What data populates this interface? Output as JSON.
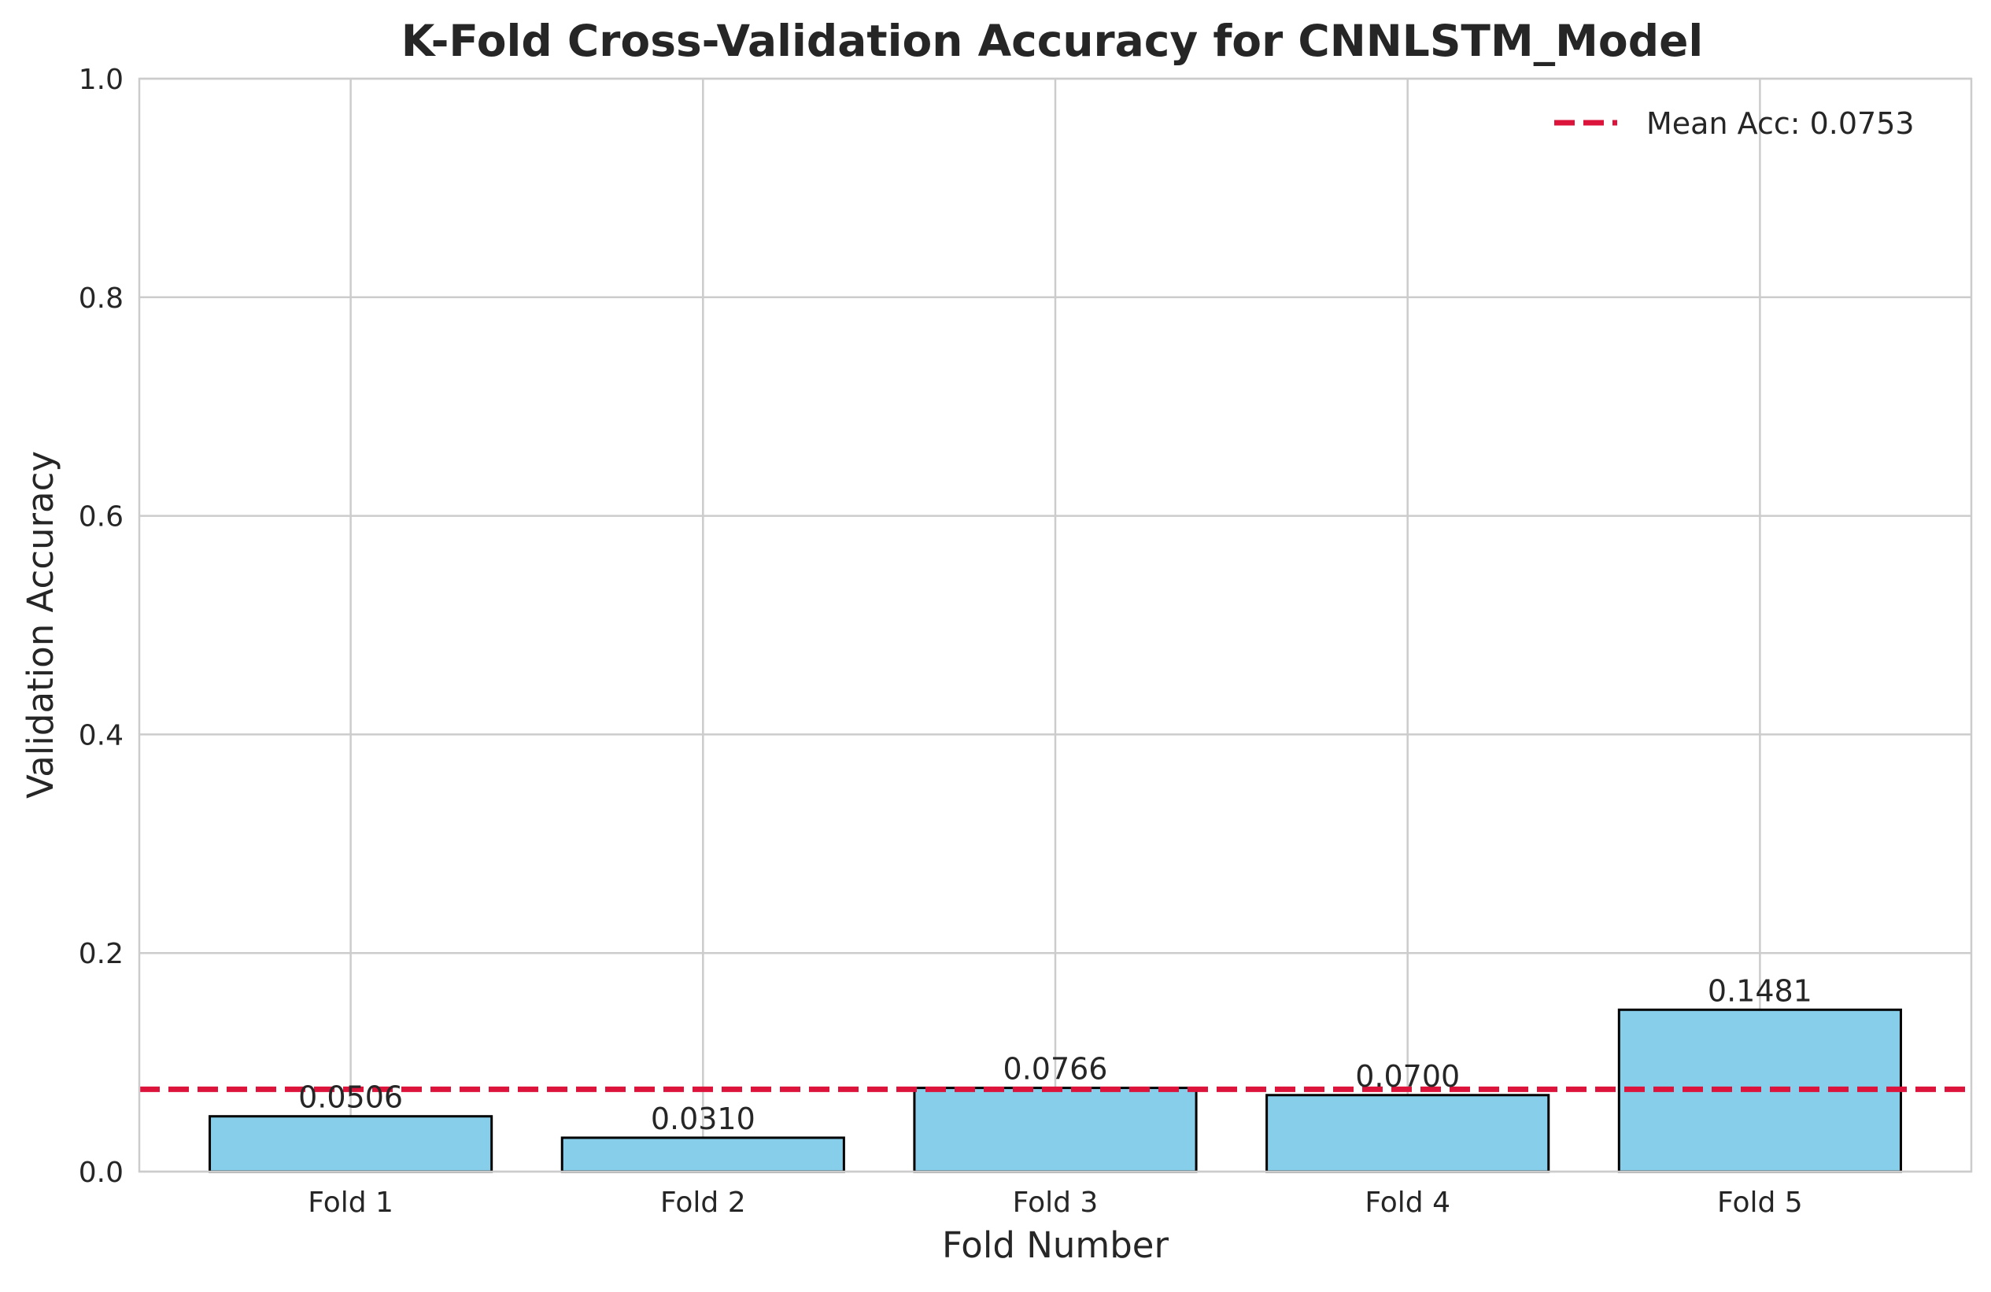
{
  "chart_data": {
    "type": "bar",
    "title": "K-Fold Cross-Validation Accuracy for CNNLSTM_Model",
    "xlabel": "Fold Number",
    "ylabel": "Validation Accuracy",
    "categories": [
      "Fold 1",
      "Fold 2",
      "Fold 3",
      "Fold 4",
      "Fold 5"
    ],
    "values": [
      0.0506,
      0.031,
      0.0766,
      0.07,
      0.1481
    ],
    "value_labels": [
      "0.0506",
      "0.0310",
      "0.0766",
      "0.0700",
      "0.1481"
    ],
    "ylim": [
      0,
      1.0
    ],
    "yticks": [
      0.0,
      0.2,
      0.4,
      0.6,
      0.8,
      1.0
    ],
    "ytick_labels": [
      "0.0",
      "0.2",
      "0.4",
      "0.6",
      "0.8",
      "1.0"
    ],
    "grid": true,
    "bar_color": "#87ceeb",
    "bar_edge_color": "#000000",
    "mean_line": {
      "value": 0.0753,
      "label": "Mean Acc: 0.0753",
      "color": "#dc143c",
      "style": "dashed"
    },
    "legend_position": "upper right"
  }
}
